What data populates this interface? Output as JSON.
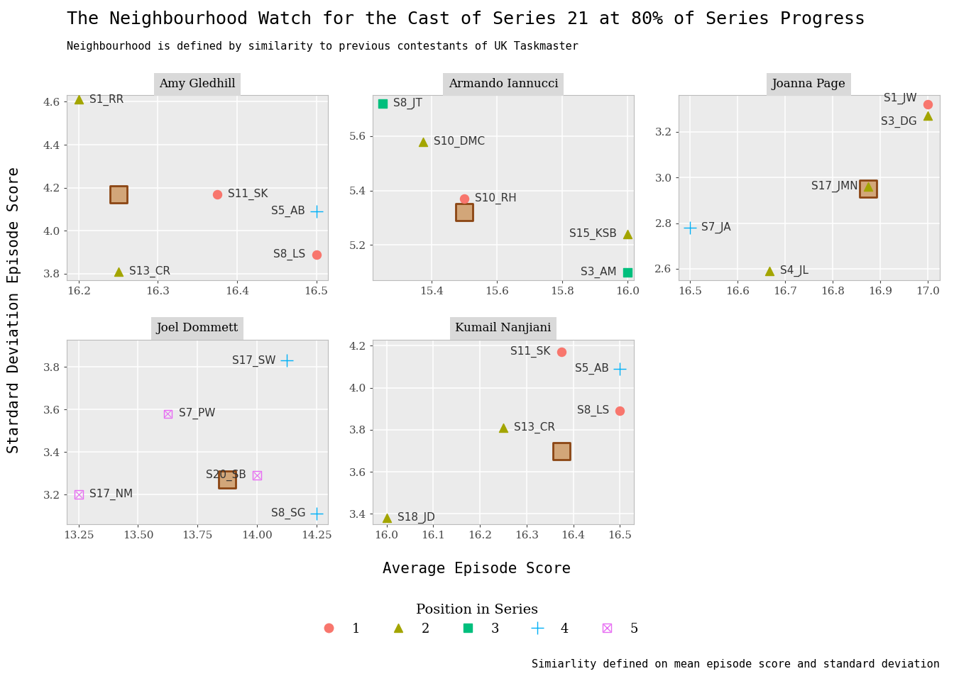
{
  "title": "The Neighbourhood Watch for the Cast of Series 21 at 80% of Series Progress",
  "subtitle": "Neighbourhood is defined by similarity to previous contestants of UK Taskmaster",
  "caption": "Simiarlity defined on mean episode score and standard deviation",
  "x_label": "Average Episode Score",
  "y_label": "Stardard Deviation Episode Score",
  "legend_title": "Position in Series",
  "legend": "lower center",
  "positions": [
    {
      "name": "1",
      "color": "#F8766D",
      "marker": "circle"
    },
    {
      "name": "2",
      "color": "#A3A500",
      "marker": "triangle"
    },
    {
      "name": "3",
      "color": "#00BF7D",
      "marker": "square"
    },
    {
      "name": "4",
      "color": "#00B0F6",
      "marker": "plus"
    },
    {
      "name": "5",
      "color": "#E76BF3",
      "marker": "square_x"
    }
  ],
  "chart_data": [
    {
      "type": "scatter",
      "title": "Amy Gledhill",
      "grid": true,
      "xlim": [
        16.185,
        16.515
      ],
      "xticks": [
        16.2,
        16.3,
        16.4,
        16.5
      ],
      "ylim": [
        3.77,
        4.63
      ],
      "yticks": [
        3.8,
        4.0,
        4.2,
        4.4,
        4.6
      ],
      "labels": [
        "S1_RR",
        "S13_CR",
        "S11_SK",
        "S5_AB",
        "S8_LS"
      ],
      "x": [
        16.2,
        16.25,
        16.375,
        16.5,
        16.5
      ],
      "y": [
        4.61,
        3.81,
        4.17,
        4.09,
        3.89
      ],
      "position": [
        "2",
        "2",
        "1",
        "4",
        "1"
      ],
      "highlight": {
        "x": 16.25,
        "y": 4.17
      }
    },
    {
      "type": "scatter",
      "title": "Armando Iannucci",
      "grid": true,
      "xlim": [
        15.22,
        16.02
      ],
      "xticks": [
        15.4,
        15.6,
        15.8,
        16.0
      ],
      "ylim": [
        5.07,
        5.75
      ],
      "yticks": [
        5.2,
        5.4,
        5.6
      ],
      "labels": [
        "S8_JT",
        "S10_DMC",
        "S10_RH",
        "S15_KSB",
        "S3_AM"
      ],
      "x": [
        15.25,
        15.375,
        15.5,
        16.0,
        16.0
      ],
      "y": [
        5.72,
        5.58,
        5.37,
        5.24,
        5.1
      ],
      "position": [
        "3",
        "2",
        "1",
        "2",
        "3"
      ],
      "highlight": {
        "x": 15.5,
        "y": 5.32
      }
    },
    {
      "type": "scatter",
      "title": "Joanna Page",
      "grid": true,
      "xlim": [
        16.475,
        17.025
      ],
      "xticks": [
        16.5,
        16.6,
        16.7,
        16.8,
        16.9,
        17.0
      ],
      "ylim": [
        2.55,
        3.36
      ],
      "yticks": [
        2.6,
        2.8,
        3.0,
        3.2
      ],
      "labels": [
        "S1_JW",
        "S3_DG",
        "S17_JMN",
        "S7_JA",
        "S4_JL"
      ],
      "x": [
        17.0,
        17.0,
        16.875,
        16.5,
        16.667
      ],
      "y": [
        3.32,
        3.27,
        2.96,
        2.78,
        2.59
      ],
      "position": [
        "1",
        "2",
        "2",
        "4",
        "2"
      ],
      "highlight": {
        "x": 16.875,
        "y": 2.95
      }
    },
    {
      "type": "scatter",
      "title": "Joel Dommett",
      "grid": true,
      "xlim": [
        13.2,
        14.3
      ],
      "xticks": [
        13.25,
        {
          "value": 13.5,
          "label": "13.50"
        },
        13.75,
        {
          "value": 14.0,
          "label": "14.00"
        },
        14.25
      ],
      "ylim": [
        3.06,
        3.93
      ],
      "yticks": [
        3.2,
        3.4,
        3.6,
        3.8
      ],
      "labels": [
        "S17_SW",
        "S7_PW",
        "S20_SB",
        "S8_SG",
        "S17_NM"
      ],
      "x": [
        14.125,
        13.625,
        14.0,
        14.25,
        13.25
      ],
      "y": [
        3.83,
        3.58,
        3.29,
        3.11,
        3.2
      ],
      "position": [
        "4",
        "5",
        "5",
        "4",
        "5"
      ],
      "highlight": {
        "x": 13.875,
        "y": 3.27
      }
    },
    {
      "type": "scatter",
      "title": "Kumail Nanjiani",
      "grid": true,
      "xlim": [
        15.97,
        16.53
      ],
      "xticks": [
        16.0,
        16.1,
        16.2,
        16.3,
        16.4,
        16.5
      ],
      "ylim": [
        3.35,
        4.23
      ],
      "yticks": [
        3.4,
        3.6,
        3.8,
        4.0,
        4.2
      ],
      "labels": [
        "S11_SK",
        "S5_AB",
        "S8_LS",
        "S13_CR",
        "S18_JD"
      ],
      "x": [
        16.375,
        16.5,
        16.5,
        16.25,
        16.0
      ],
      "y": [
        4.17,
        4.09,
        3.89,
        3.81,
        3.38
      ],
      "position": [
        "1",
        "4",
        "1",
        "2",
        "2"
      ],
      "highlight": {
        "x": 16.375,
        "y": 3.7
      }
    }
  ]
}
